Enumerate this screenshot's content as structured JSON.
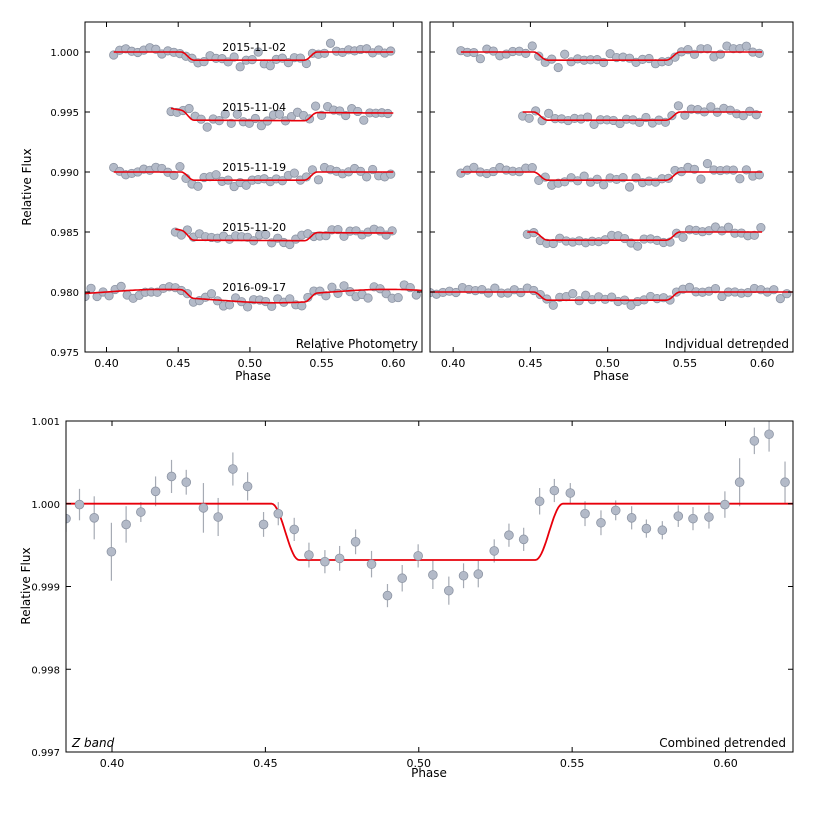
{
  "chart_data": [
    {
      "panel": "top-left",
      "type": "scatter",
      "xlabel": "Phase",
      "ylabel": "Relative Flux",
      "xlim": [
        0.385,
        0.62
      ],
      "ylim": [
        0.975,
        1.0025
      ],
      "xticks": [
        0.4,
        0.45,
        0.5,
        0.55,
        0.6
      ],
      "xtick_labels": [
        "0.40",
        "0.45",
        "0.50",
        "0.55",
        "0.60"
      ],
      "yticks": [
        0.975,
        0.98,
        0.985,
        0.99,
        0.995,
        1.0
      ],
      "ytick_labels": [
        "0.975",
        "0.980",
        "0.985",
        "0.990",
        "0.995",
        "1.000"
      ],
      "label": "Relative Photometry",
      "label_position": "bottom-right",
      "series": [
        {
          "name": "2015-11-02",
          "baseline": 1.0,
          "x_range": [
            0.405,
            0.6
          ],
          "model": "box",
          "scatter": 0.00055
        },
        {
          "name": "2015-11-04",
          "baseline": 0.995,
          "x_range": [
            0.445,
            0.6
          ],
          "model": "trend",
          "scatter": 0.00055
        },
        {
          "name": "2015-11-19",
          "baseline": 0.99,
          "x_range": [
            0.405,
            0.6
          ],
          "model": "box",
          "scatter": 0.00055
        },
        {
          "name": "2015-11-20",
          "baseline": 0.985,
          "x_range": [
            0.448,
            0.6
          ],
          "model": "trend",
          "scatter": 0.00055
        },
        {
          "name": "2016-09-17",
          "baseline": 0.98,
          "x_range": [
            0.385,
            0.62
          ],
          "model": "wave",
          "scatter": 0.00055
        }
      ]
    },
    {
      "panel": "top-right",
      "type": "scatter",
      "xlabel": "Phase",
      "xlim": [
        0.385,
        0.62
      ],
      "ylim": [
        0.975,
        1.0025
      ],
      "xticks": [
        0.4,
        0.45,
        0.5,
        0.55,
        0.6
      ],
      "xtick_labels": [
        "0.40",
        "0.45",
        "0.50",
        "0.55",
        "0.60"
      ],
      "label": "Individual detrended",
      "label_position": "bottom-right",
      "series": [
        {
          "name": "2015-11-02",
          "baseline": 1.0,
          "x_range": [
            0.405,
            0.6
          ]
        },
        {
          "name": "2015-11-04",
          "baseline": 0.995,
          "x_range": [
            0.445,
            0.6
          ]
        },
        {
          "name": "2015-11-19",
          "baseline": 0.99,
          "x_range": [
            0.405,
            0.6
          ]
        },
        {
          "name": "2015-11-20",
          "baseline": 0.985,
          "x_range": [
            0.448,
            0.6
          ]
        },
        {
          "name": "2016-09-17",
          "baseline": 0.98,
          "x_range": [
            0.385,
            0.62
          ]
        }
      ]
    },
    {
      "panel": "bottom",
      "type": "scatter",
      "xlabel": "Phase",
      "ylabel": "Relative Flux",
      "xlim": [
        0.385,
        0.622
      ],
      "ylim": [
        0.997,
        1.001
      ],
      "xticks": [
        0.4,
        0.45,
        0.5,
        0.55,
        0.6
      ],
      "xtick_labels": [
        "0.40",
        "0.45",
        "0.50",
        "0.55",
        "0.60"
      ],
      "yticks": [
        0.997,
        0.998,
        0.999,
        1.0,
        1.001
      ],
      "ytick_labels": [
        "0.997",
        "0.998",
        "0.999",
        "1.000",
        "1.001"
      ],
      "label_left": "Z band",
      "label_right": "Combined detrended",
      "model": {
        "depth": 0.00068,
        "t1": 0.452,
        "t2": 0.461,
        "t3": 0.538,
        "t4": 0.547
      },
      "points": [
        {
          "x": 0.385,
          "y": 0.99982,
          "err": 0.00016
        },
        {
          "x": 0.3894,
          "y": 0.99999,
          "err": 0.00019
        },
        {
          "x": 0.3942,
          "y": 0.99983,
          "err": 0.00026
        },
        {
          "x": 0.3998,
          "y": 0.99942,
          "err": 0.00035
        },
        {
          "x": 0.4046,
          "y": 0.99975,
          "err": 0.00022
        },
        {
          "x": 0.4094,
          "y": 0.9999,
          "err": 0.00012
        },
        {
          "x": 0.4142,
          "y": 1.00015,
          "err": 0.00018
        },
        {
          "x": 0.4194,
          "y": 1.00033,
          "err": 0.0002
        },
        {
          "x": 0.4242,
          "y": 1.00026,
          "err": 0.00015
        },
        {
          "x": 0.4298,
          "y": 0.99995,
          "err": 0.0003
        },
        {
          "x": 0.4346,
          "y": 0.99984,
          "err": 0.00023
        },
        {
          "x": 0.4394,
          "y": 1.00042,
          "err": 0.0002
        },
        {
          "x": 0.4442,
          "y": 1.00021,
          "err": 0.00017
        },
        {
          "x": 0.4494,
          "y": 0.99975,
          "err": 0.00015
        },
        {
          "x": 0.4542,
          "y": 0.99988,
          "err": 0.00014
        },
        {
          "x": 0.4594,
          "y": 0.99969,
          "err": 0.00014
        },
        {
          "x": 0.4642,
          "y": 0.99938,
          "err": 0.00015
        },
        {
          "x": 0.4694,
          "y": 0.9993,
          "err": 0.00014
        },
        {
          "x": 0.4742,
          "y": 0.99934,
          "err": 0.00015
        },
        {
          "x": 0.4794,
          "y": 0.99954,
          "err": 0.00015
        },
        {
          "x": 0.4846,
          "y": 0.99927,
          "err": 0.00016
        },
        {
          "x": 0.4898,
          "y": 0.99889,
          "err": 0.00014
        },
        {
          "x": 0.4946,
          "y": 0.9991,
          "err": 0.00016
        },
        {
          "x": 0.4998,
          "y": 0.99937,
          "err": 0.00014
        },
        {
          "x": 0.5046,
          "y": 0.99914,
          "err": 0.00017
        },
        {
          "x": 0.5098,
          "y": 0.99895,
          "err": 0.00017
        },
        {
          "x": 0.5146,
          "y": 0.99913,
          "err": 0.00015
        },
        {
          "x": 0.5194,
          "y": 0.99915,
          "err": 0.00016
        },
        {
          "x": 0.5246,
          "y": 0.99943,
          "err": 0.00014
        },
        {
          "x": 0.5294,
          "y": 0.99962,
          "err": 0.00014
        },
        {
          "x": 0.5342,
          "y": 0.99957,
          "err": 0.00014
        },
        {
          "x": 0.5394,
          "y": 1.00003,
          "err": 0.00016
        },
        {
          "x": 0.5442,
          "y": 1.00016,
          "err": 0.00014
        },
        {
          "x": 0.5494,
          "y": 1.00013,
          "err": 0.00012
        },
        {
          "x": 0.5542,
          "y": 0.99988,
          "err": 0.00015
        },
        {
          "x": 0.5594,
          "y": 0.99977,
          "err": 0.00015
        },
        {
          "x": 0.5642,
          "y": 0.99992,
          "err": 0.00012
        },
        {
          "x": 0.5694,
          "y": 0.99983,
          "err": 0.00014
        },
        {
          "x": 0.5742,
          "y": 0.9997,
          "err": 0.00011
        },
        {
          "x": 0.5794,
          "y": 0.99968,
          "err": 0.00011
        },
        {
          "x": 0.5846,
          "y": 0.99985,
          "err": 0.00013
        },
        {
          "x": 0.5894,
          "y": 0.99982,
          "err": 0.00014
        },
        {
          "x": 0.5946,
          "y": 0.99984,
          "err": 0.00014
        },
        {
          "x": 0.5998,
          "y": 0.99999,
          "err": 0.00016
        },
        {
          "x": 0.6046,
          "y": 1.00026,
          "err": 0.00029
        },
        {
          "x": 0.6094,
          "y": 1.00076,
          "err": 0.00016
        },
        {
          "x": 0.6142,
          "y": 1.00084,
          "err": 0.00021
        },
        {
          "x": 0.6194,
          "y": 1.00026,
          "err": 0.00025
        }
      ]
    }
  ],
  "style": {
    "marker_fill": "#b3bac8",
    "marker_stroke": "#8d95a4",
    "model_color": "#e8000b",
    "errorbar_color": "#a6abb4",
    "axis_color": "#000000"
  }
}
